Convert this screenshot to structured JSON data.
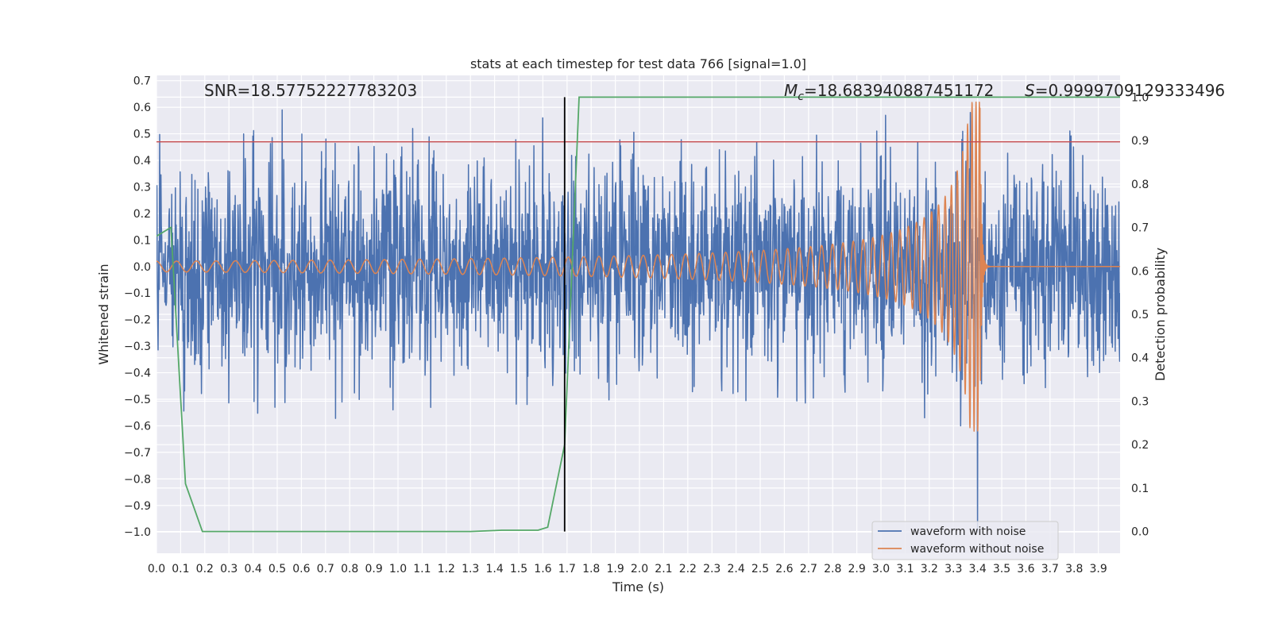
{
  "chart_data": {
    "type": "line",
    "title": "stats at each timestep for test data 766 [signal=1.0]",
    "xlabel": "Time (s)",
    "ylabel": "Whitened strain",
    "y2label": "Detection probability",
    "xlim": [
      0.0,
      3.99
    ],
    "ylim": [
      -1.08,
      0.72
    ],
    "y2lim": [
      -0.05,
      1.05
    ],
    "x_ticks": [
      0.0,
      0.1,
      0.2,
      0.3,
      0.4,
      0.5,
      0.6,
      0.7,
      0.8,
      0.9,
      1.0,
      1.1,
      1.2,
      1.3,
      1.4,
      1.5,
      1.6,
      1.7,
      1.8,
      1.9,
      2.0,
      2.1,
      2.2,
      2.3,
      2.4,
      2.5,
      2.6,
      2.7,
      2.8,
      2.9,
      3.0,
      3.1,
      3.2,
      3.3,
      3.4,
      3.5,
      3.6,
      3.7,
      3.8,
      3.9
    ],
    "x_tick_labels": [
      "0.0",
      "0.1",
      "0.2",
      "0.3",
      "0.4",
      "0.5",
      "0.6",
      "0.7",
      "0.8",
      "0.9",
      "1.0",
      "1.1",
      "1.2",
      "1.3",
      "1.4",
      "1.5",
      "1.6",
      "1.7",
      "1.8",
      "1.9",
      "2.0",
      "2.1",
      "2.2",
      "2.3",
      "2.4",
      "2.5",
      "2.6",
      "2.7",
      "2.8",
      "2.9",
      "3.0",
      "3.1",
      "3.2",
      "3.3",
      "3.4",
      "3.5",
      "3.6",
      "3.7",
      "3.8",
      "3.9"
    ],
    "y_ticks": [
      0.7,
      0.6,
      0.5,
      0.4,
      0.3,
      0.2,
      0.1,
      0.0,
      -0.1,
      -0.2,
      -0.3,
      -0.4,
      -0.5,
      -0.6,
      -0.7,
      -0.8,
      -0.9,
      -1.0
    ],
    "y_tick_labels": [
      "0.7",
      "0.6",
      "0.5",
      "0.4",
      "0.3",
      "0.2",
      "0.1",
      "0.0",
      "−0.1",
      "−0.2",
      "−0.3",
      "−0.4",
      "−0.5",
      "−0.6",
      "−0.7",
      "−0.8",
      "−0.9",
      "−1.0"
    ],
    "y2_ticks": [
      1.0,
      0.9,
      0.8,
      0.7,
      0.6,
      0.5,
      0.4,
      0.3,
      0.2,
      0.1,
      0.0
    ],
    "y2_tick_labels": [
      "1.0",
      "0.9",
      "0.8",
      "0.7",
      "0.6",
      "0.5",
      "0.4",
      "0.3",
      "0.2",
      "0.1",
      "0.0"
    ],
    "grid": true,
    "series": [
      {
        "name": "waveform with noise",
        "color": "#4c72b0",
        "description": "noisy whitened strain, amplitude ~0.25 std, spikes up to ~0.6 and down to ~-1.0 near t=3.4",
        "noise_std": 0.2,
        "seed": 766,
        "spikes": [
          [
            0.52,
            0.59
          ],
          [
            1.06,
            0.52
          ],
          [
            1.6,
            0.56
          ],
          [
            3.37,
            0.58
          ],
          [
            3.4,
            -1.0
          ],
          [
            3.33,
            -0.6
          ],
          [
            3.18,
            -0.57
          ],
          [
            0.49,
            -0.53
          ],
          [
            0.98,
            -0.54
          ]
        ]
      },
      {
        "name": "waveform without noise",
        "color": "#dd8452",
        "description": "chirp signal, merger at t=3.41",
        "merger_time": 3.41,
        "amp_start": 0.02,
        "amp_peak": 0.62,
        "freq_start": 12,
        "offset": 0.0
      },
      {
        "name": "detection probability",
        "color": "#55a868",
        "axis": "y2",
        "x": [
          0.0,
          0.06,
          0.12,
          0.19,
          0.3,
          0.6,
          1.0,
          1.3,
          1.43,
          1.58,
          1.62,
          1.69,
          1.75,
          1.8,
          2.0,
          3.0,
          3.99
        ],
        "values": [
          0.68,
          0.7,
          0.11,
          0.0,
          0.0,
          0.0,
          0.0,
          0.0,
          0.003,
          0.003,
          0.01,
          0.2,
          1.0,
          1.0,
          1.0,
          1.0,
          1.0
        ]
      }
    ],
    "threshold_line": {
      "y": 0.47,
      "color": "#c44e52"
    },
    "vertical_line": {
      "x": 1.69,
      "color": "#000000"
    },
    "annotations": {
      "snr": "SNR=18.57752227783203",
      "mc_symbol": "M",
      "mc_sub": "c",
      "mc_value": "=18.683940887451172",
      "s_symbol": "S",
      "s_value": "=0.9999709129333496"
    },
    "legend": {
      "placement": "lower-right",
      "entries": [
        {
          "label": "waveform with noise",
          "color": "#4c72b0"
        },
        {
          "label": "waveform without noise",
          "color": "#dd8452"
        }
      ]
    }
  }
}
